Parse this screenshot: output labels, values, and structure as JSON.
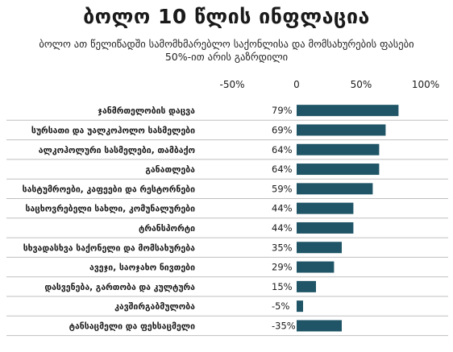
{
  "header": {
    "title": "ბოლო 10 წლის ინფლაცია",
    "subtitle": "ბოლო ათ წელიწადში სამომხმარებლო საქონლისა და მომსახურების ფასები 50%-ით არის გაზრდილი"
  },
  "colors": {
    "bar": "#1f5566",
    "grid": "#bfbfbf",
    "text": "#1a1a1a"
  },
  "chart_data": {
    "type": "bar",
    "orientation": "horizontal",
    "title": "ბოლო 10 წლის ინფლაცია",
    "subtitle": "ბოლო ათ წელიწადში სამომხმარებლო საქონლისა და მომსახურების ფასები 50%-ით არის გაზრდილი",
    "xlim": [
      -50,
      100
    ],
    "xticks": [
      -50,
      0,
      50,
      100
    ],
    "xtick_labels": [
      "-50%",
      "0",
      "50%",
      "100%"
    ],
    "grid": false,
    "categories": [
      "ჯანმრთელობის დაცვა",
      "სურსათი და უალკოჰოლო სასმელები",
      "ალკოჰოლური სასმელები, თამბაქო",
      "განათლება",
      "სასტუმროები, კაფეები და რესტორნები",
      "საცხოვრებელი სახლი, კომუნალურები",
      "ტრანსპორტი",
      "სხვადასხვა საქონელი და მომსახურება",
      "ავეჯი, საოჯახო ნივთები",
      "დასვენება, გართობა და კულტურა",
      "კავშირგაბმულობა",
      "ტანსაცმელი და ფეხსაცმელი"
    ],
    "values": [
      79,
      69,
      64,
      64,
      59,
      44,
      44,
      35,
      29,
      15,
      -5,
      -35
    ],
    "value_labels": [
      "79%",
      "69%",
      "64%",
      "64%",
      "59%",
      "44%",
      "44%",
      "35%",
      "29%",
      "15%",
      "-5%",
      "-35%"
    ],
    "bar_lengths": [
      79,
      69,
      64,
      64,
      59,
      44,
      44,
      35,
      29,
      15,
      5,
      35
    ]
  }
}
